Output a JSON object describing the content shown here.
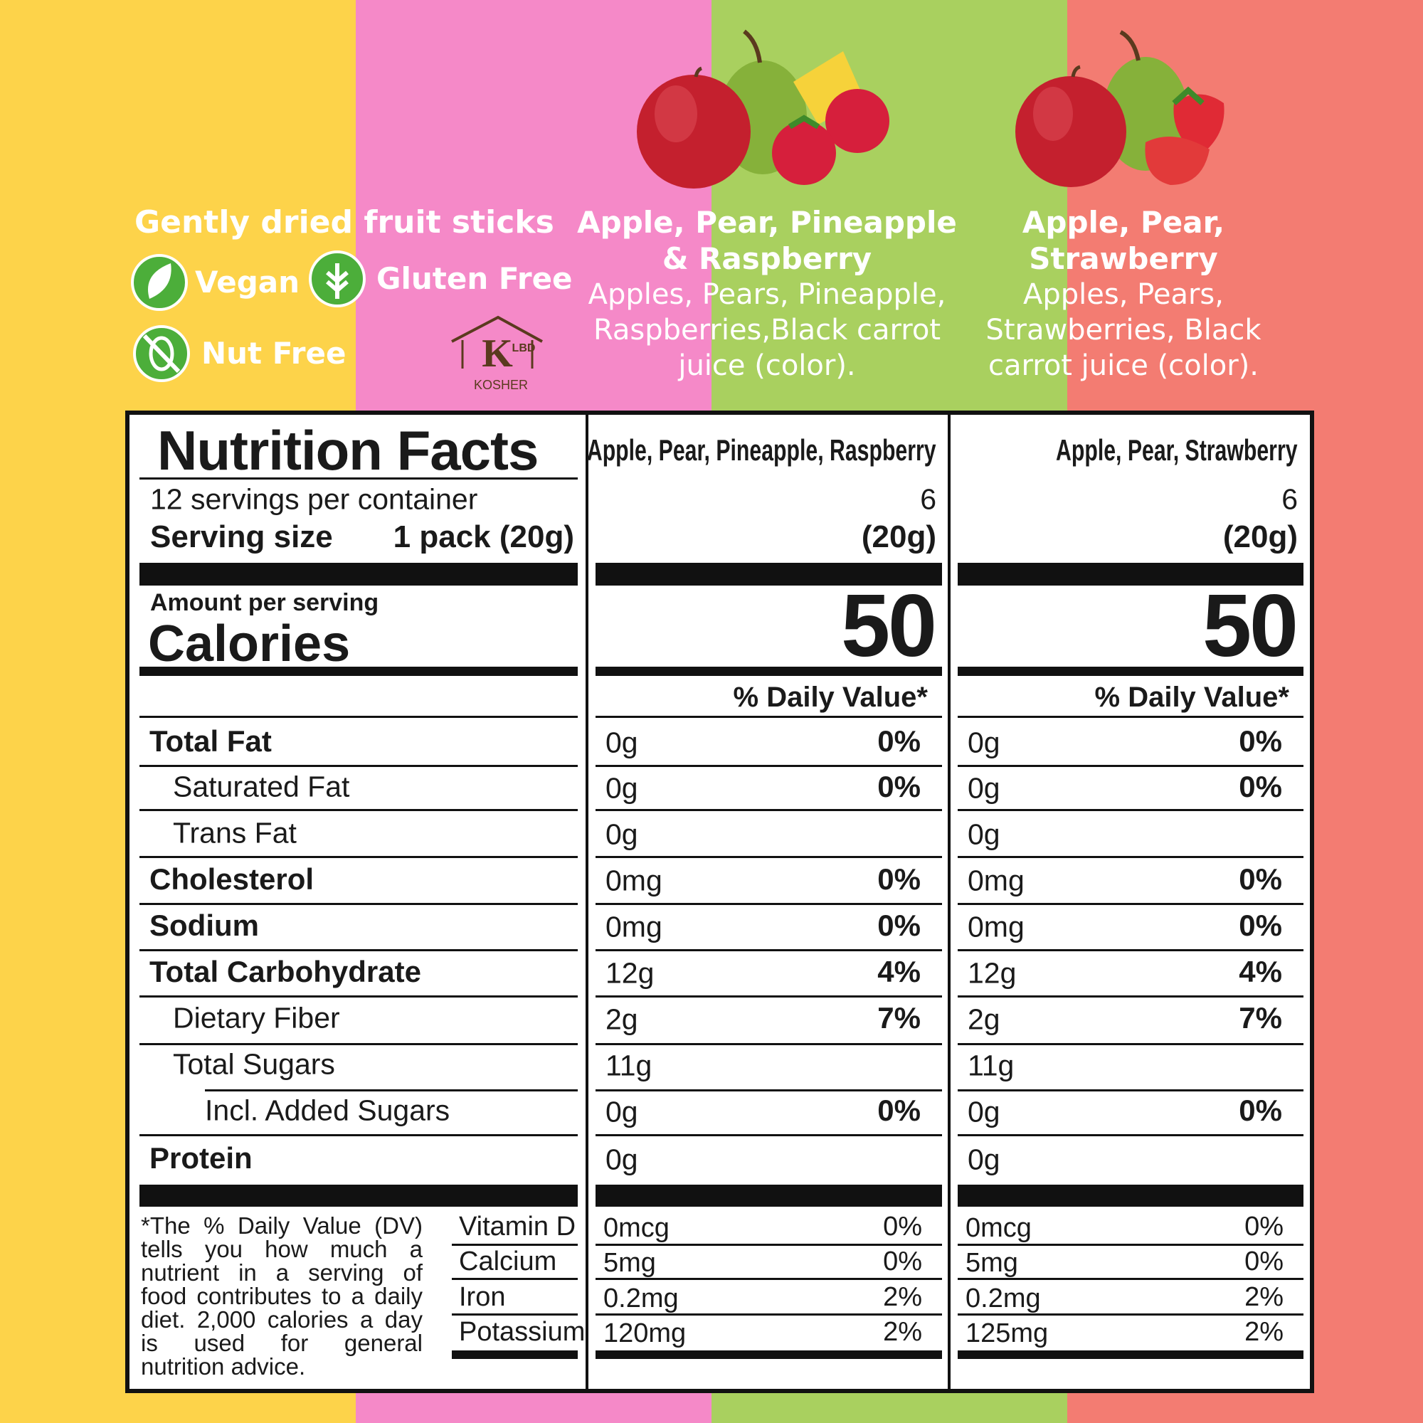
{
  "header": {
    "tagline": "Gently dried fruit sticks",
    "badges": [
      "Vegan",
      "Gluten Free",
      "Nut Free"
    ],
    "kosher": {
      "mark": "K",
      "code": "LBD",
      "label": "KOSHER"
    }
  },
  "flavors": [
    {
      "name": "Apple, Pear, Pineapple & Raspberry",
      "ingredients": "Apples, Pears, Pineapple, Raspberries,Black carrot juice (color)."
    },
    {
      "name": "Apple, Pear, Strawberry",
      "ingredients": "Apples, Pears, Strawberries, Black carrot juice (color)."
    }
  ],
  "nutrition": {
    "title": "Nutrition Facts",
    "servings_text": "12 servings per container",
    "serving_size_label": "Serving size",
    "serving_size": "1 pack (20g)",
    "amount_per_serving": "Amount per serving",
    "calories_label": "Calories",
    "nutrients": [
      "Total Fat",
      "Saturated Fat",
      "Trans Fat",
      "Cholesterol",
      "Sodium",
      "Total Carbohydrate",
      "Dietary Fiber",
      "Total Sugars",
      "Incl. Added Sugars",
      "Protein"
    ],
    "vitamins": [
      "Vitamin D",
      "Calcium",
      "Iron",
      "Potassium"
    ],
    "footnote": "*The % Daily Value (DV) tells you how much a nutrient in a serving of food contributes to a daily diet. 2,000 calories a day is used for general nutrition advice.",
    "columns": [
      {
        "name": "Apple, Pear, Pineapple, Raspberry",
        "servings": "6",
        "serving_size": "(20g)",
        "calories": "50",
        "dv_header": "% Daily Value*",
        "amounts": [
          "0g",
          "0g",
          "0g",
          "0mg",
          "0mg",
          "12g",
          "2g",
          "11g",
          "0g",
          "0g"
        ],
        "dv": [
          "0%",
          "0%",
          null,
          "0%",
          "0%",
          "4%",
          "7%",
          null,
          "0%",
          null
        ],
        "vitamin_amounts": [
          "0mcg",
          "5mg",
          "0.2mg",
          "120mg"
        ],
        "vitamin_dv": [
          "0%",
          "0%",
          "2%",
          "2%"
        ]
      },
      {
        "name": "Apple, Pear, Strawberry",
        "servings": "6",
        "serving_size": "(20g)",
        "calories": "50",
        "dv_header": "% Daily Value*",
        "amounts": [
          "0g",
          "0g",
          "0g",
          "0mg",
          "0mg",
          "12g",
          "2g",
          "11g",
          "0g",
          "0g"
        ],
        "dv": [
          "0%",
          "0%",
          null,
          "0%",
          "0%",
          "4%",
          "7%",
          null,
          "0%",
          null
        ],
        "vitamin_amounts": [
          "0mcg",
          "5mg",
          "0.2mg",
          "125mg"
        ],
        "vitamin_dv": [
          "0%",
          "0%",
          "2%",
          "2%"
        ]
      }
    ]
  }
}
